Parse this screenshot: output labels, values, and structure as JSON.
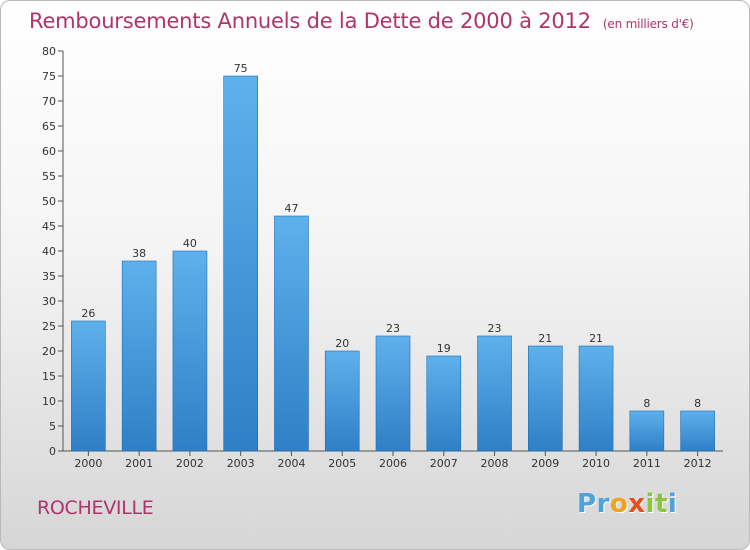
{
  "header": {
    "title": "Remboursements Annuels de la Dette de 2000 à 2012",
    "unit": "(en milliers d'€)"
  },
  "footer": {
    "city": "ROCHEVILLE",
    "logo_letters": [
      {
        "char": "P",
        "color": "#4fa3d9"
      },
      {
        "char": "r",
        "color": "#4fa3d9"
      },
      {
        "char": "o",
        "color": "#f0a21b"
      },
      {
        "char": "x",
        "color": "#e94e1b"
      },
      {
        "char": "i",
        "color": "#8cc63f"
      },
      {
        "char": "t",
        "color": "#8cc63f"
      },
      {
        "char": "i",
        "color": "#4fa3d9"
      }
    ]
  },
  "colors": {
    "bar_top": "#5eb1ec",
    "bar_bottom": "#2f7fc6",
    "bar_edge": "#1f6fb5",
    "axis": "#555555",
    "title": "#b0346a"
  },
  "chart_data": {
    "type": "bar",
    "title": "Remboursements Annuels de la Dette de 2000 à 2012",
    "xlabel": "",
    "ylabel": "",
    "categories": [
      "2000",
      "2001",
      "2002",
      "2003",
      "2004",
      "2005",
      "2006",
      "2007",
      "2008",
      "2009",
      "2010",
      "2011",
      "2012"
    ],
    "values": [
      26,
      38,
      40,
      75,
      47,
      20,
      23,
      19,
      23,
      21,
      21,
      8,
      8
    ],
    "ylim": [
      0,
      80
    ],
    "yticks": [
      0,
      5,
      10,
      15,
      20,
      25,
      30,
      35,
      40,
      45,
      50,
      55,
      60,
      65,
      70,
      75,
      80
    ],
    "grid": false,
    "legend": "none"
  }
}
